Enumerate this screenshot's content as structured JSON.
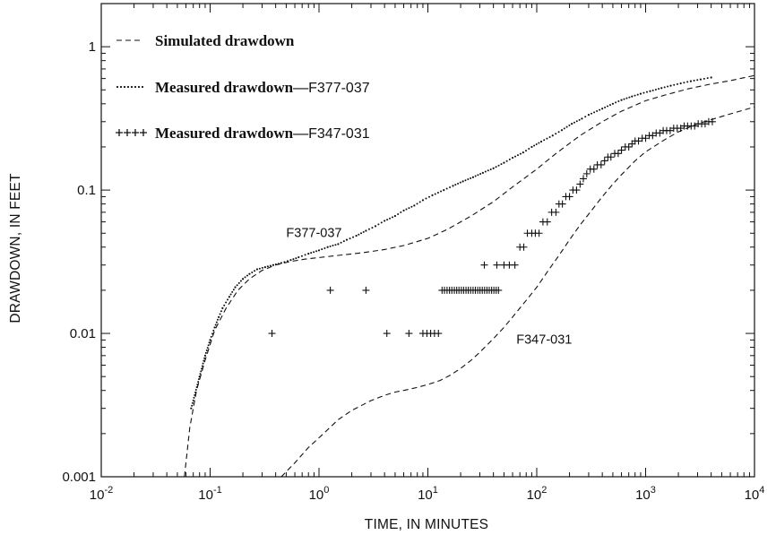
{
  "chart_data": {
    "type": "scatter",
    "title": "",
    "xlabel": "TIME, IN MINUTES",
    "ylabel": "DRAWDOWN, IN FEET",
    "xscale": "log",
    "yscale": "log",
    "xlim": [
      0.01,
      10000
    ],
    "ylim": [
      0.001,
      2
    ],
    "grid": false,
    "legend_position": "top-left",
    "x_ticks": [
      {
        "base": "10",
        "exp": "-2"
      },
      {
        "base": "10",
        "exp": "-1"
      },
      {
        "base": "10",
        "exp": "0"
      },
      {
        "base": "10",
        "exp": "1"
      },
      {
        "base": "10",
        "exp": "2"
      },
      {
        "base": "10",
        "exp": "3"
      },
      {
        "base": "10",
        "exp": "4"
      }
    ],
    "y_ticks": [
      "0.001",
      "0.01",
      "0.1",
      "1"
    ],
    "legend": [
      {
        "symbol": "dashed",
        "label": "Simulated drawdown"
      },
      {
        "symbol": "dotted",
        "label": "Measured drawdown—",
        "well": "F377-037"
      },
      {
        "symbol": "plus",
        "label": "Measured drawdown—",
        "well": "F347-031"
      }
    ],
    "annotations": [
      {
        "text": "F377-037",
        "x": 0.5,
        "y": 0.047
      },
      {
        "text": "F347-031",
        "x": 65,
        "y": 0.0085
      }
    ],
    "series": [
      {
        "name": "Simulated drawdown",
        "well": "F377-037",
        "style": "dashed",
        "x": [
          0.058,
          0.065,
          0.075,
          0.09,
          0.11,
          0.14,
          0.18,
          0.23,
          0.3,
          0.4,
          0.55,
          0.75,
          1,
          1.5,
          2.5,
          4,
          6,
          10,
          15,
          25,
          40,
          60,
          100,
          150,
          250,
          400,
          600,
          1000,
          1500,
          2500,
          4000,
          6000,
          10000
        ],
        "y": [
          0.001,
          0.0022,
          0.004,
          0.0065,
          0.0105,
          0.015,
          0.02,
          0.024,
          0.0275,
          0.03,
          0.0318,
          0.033,
          0.0338,
          0.035,
          0.0365,
          0.0385,
          0.041,
          0.046,
          0.053,
          0.066,
          0.083,
          0.105,
          0.14,
          0.18,
          0.24,
          0.3,
          0.355,
          0.42,
          0.46,
          0.51,
          0.55,
          0.58,
          0.63
        ]
      },
      {
        "name": "Simulated drawdown",
        "well": "F347-031",
        "style": "dashed",
        "x": [
          0.45,
          0.6,
          0.8,
          1.1,
          1.5,
          2,
          3,
          4,
          5,
          6,
          8,
          10,
          13,
          16,
          20,
          25,
          30,
          40,
          50,
          60,
          80,
          100,
          130,
          160,
          200,
          250,
          300,
          400,
          500,
          600,
          800,
          1000,
          1500,
          2000,
          3000,
          4000,
          6000,
          10000
        ],
        "y": [
          0.001,
          0.00125,
          0.0016,
          0.002,
          0.0025,
          0.0029,
          0.0034,
          0.0037,
          0.0039,
          0.004,
          0.0042,
          0.0044,
          0.0047,
          0.0051,
          0.0057,
          0.0065,
          0.0074,
          0.0092,
          0.011,
          0.013,
          0.017,
          0.021,
          0.028,
          0.035,
          0.045,
          0.057,
          0.068,
          0.09,
          0.11,
          0.128,
          0.16,
          0.185,
          0.225,
          0.255,
          0.29,
          0.31,
          0.34,
          0.38
        ]
      },
      {
        "name": "Measured drawdown—F377-037",
        "style": "dotted",
        "x": [
          0.067,
          0.08,
          0.09,
          0.1,
          0.11,
          0.12,
          0.13,
          0.15,
          0.17,
          0.2,
          0.23,
          0.27,
          0.32,
          0.38,
          0.45,
          0.55,
          0.65,
          0.8,
          1,
          1.2,
          1.5,
          1.8,
          2.2,
          2.7,
          3.3,
          4,
          5,
          6,
          7.5,
          9,
          11,
          14,
          17,
          21,
          26,
          32,
          40,
          50,
          60,
          75,
          90,
          110,
          140,
          170,
          210,
          260,
          300,
          400,
          500,
          600,
          750,
          900,
          1100,
          1400,
          1700,
          2100,
          2600,
          3200,
          4000
        ],
        "y": [
          0.003,
          0.005,
          0.007,
          0.009,
          0.011,
          0.013,
          0.015,
          0.018,
          0.021,
          0.024,
          0.026,
          0.028,
          0.029,
          0.03,
          0.031,
          0.0325,
          0.034,
          0.036,
          0.038,
          0.04,
          0.042,
          0.045,
          0.048,
          0.052,
          0.056,
          0.061,
          0.066,
          0.072,
          0.078,
          0.085,
          0.092,
          0.1,
          0.107,
          0.115,
          0.123,
          0.132,
          0.142,
          0.155,
          0.168,
          0.183,
          0.2,
          0.218,
          0.24,
          0.262,
          0.29,
          0.315,
          0.335,
          0.37,
          0.4,
          0.425,
          0.45,
          0.47,
          0.49,
          0.515,
          0.535,
          0.555,
          0.575,
          0.592,
          0.61
        ]
      },
      {
        "name": "Measured drawdown—F347-031",
        "style": "plus",
        "x": [
          0.37,
          1.27,
          2.7,
          4.2,
          6.7,
          9,
          9.8,
          10.6,
          11.5,
          12.5,
          13.5,
          14.2,
          15,
          15.8,
          16.6,
          17.5,
          18.4,
          19.3,
          20.3,
          21.3,
          22.4,
          23.5,
          24.7,
          26,
          27.3,
          28.7,
          30.1,
          31.6,
          33.2,
          34.9,
          36.6,
          38.5,
          40.4,
          42.4,
          44.5,
          33,
          43,
          50,
          56,
          63,
          70,
          76,
          82,
          90,
          97,
          105,
          114,
          125,
          137,
          150,
          160,
          172,
          185,
          200,
          215,
          232,
          250,
          268,
          288,
          310,
          335,
          360,
          390,
          420,
          450,
          480,
          520,
          560,
          600,
          650,
          700,
          750,
          800,
          860,
          930,
          1000,
          1080,
          1160,
          1250,
          1350,
          1450,
          1560,
          1680,
          1810,
          1950,
          2100,
          2260,
          2430,
          2620,
          2820,
          3040,
          3270,
          3520,
          3800,
          4100
        ],
        "y": [
          0.01,
          0.02,
          0.02,
          0.01,
          0.01,
          0.01,
          0.01,
          0.01,
          0.01,
          0.01,
          0.02,
          0.02,
          0.02,
          0.02,
          0.02,
          0.02,
          0.02,
          0.02,
          0.02,
          0.02,
          0.02,
          0.02,
          0.02,
          0.02,
          0.02,
          0.02,
          0.02,
          0.02,
          0.02,
          0.02,
          0.02,
          0.02,
          0.02,
          0.02,
          0.02,
          0.03,
          0.03,
          0.03,
          0.03,
          0.03,
          0.04,
          0.04,
          0.05,
          0.05,
          0.05,
          0.05,
          0.06,
          0.06,
          0.07,
          0.07,
          0.08,
          0.08,
          0.09,
          0.09,
          0.1,
          0.1,
          0.11,
          0.12,
          0.13,
          0.14,
          0.14,
          0.15,
          0.15,
          0.16,
          0.17,
          0.17,
          0.18,
          0.18,
          0.19,
          0.2,
          0.2,
          0.21,
          0.22,
          0.22,
          0.23,
          0.23,
          0.24,
          0.24,
          0.25,
          0.25,
          0.26,
          0.26,
          0.26,
          0.27,
          0.27,
          0.27,
          0.28,
          0.28,
          0.28,
          0.28,
          0.29,
          0.29,
          0.29,
          0.3,
          0.3
        ]
      }
    ]
  }
}
